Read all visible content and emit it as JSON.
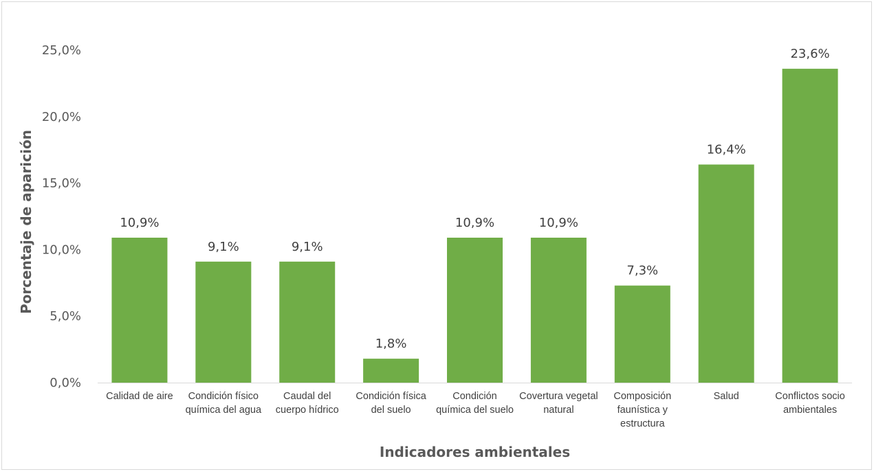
{
  "colors": {
    "bar": "#70ad47",
    "axis_line": "#d9d9d9",
    "text": "#595959"
  },
  "chart_data": {
    "type": "bar",
    "title": "",
    "xlabel": "Indicadores ambientales",
    "ylabel": "Porcentaje de aparición",
    "ylim": [
      0,
      25
    ],
    "yticks": [
      "0,0%",
      "5,0%",
      "10,0%",
      "15,0%",
      "20,0%",
      "25,0%"
    ],
    "grid": false,
    "legend": "none",
    "categories": [
      [
        "Calidad de aire"
      ],
      [
        "Condición físico",
        "química del agua"
      ],
      [
        "Caudal del",
        "cuerpo hídrico"
      ],
      [
        "Condición física",
        "del suelo"
      ],
      [
        "Condición",
        "química del suelo"
      ],
      [
        "Covertura vegetal",
        "natural"
      ],
      [
        "Composición",
        "faunística y",
        "estructura"
      ],
      [
        "Salud"
      ],
      [
        "Conflictos socio",
        "ambientales"
      ]
    ],
    "values": [
      10.9,
      9.1,
      9.1,
      1.8,
      10.9,
      10.9,
      7.3,
      16.4,
      23.6
    ],
    "data_labels": [
      "10,9%",
      "9,1%",
      "9,1%",
      "1,8%",
      "10,9%",
      "10,9%",
      "7,3%",
      "16,4%",
      "23,6%"
    ]
  }
}
